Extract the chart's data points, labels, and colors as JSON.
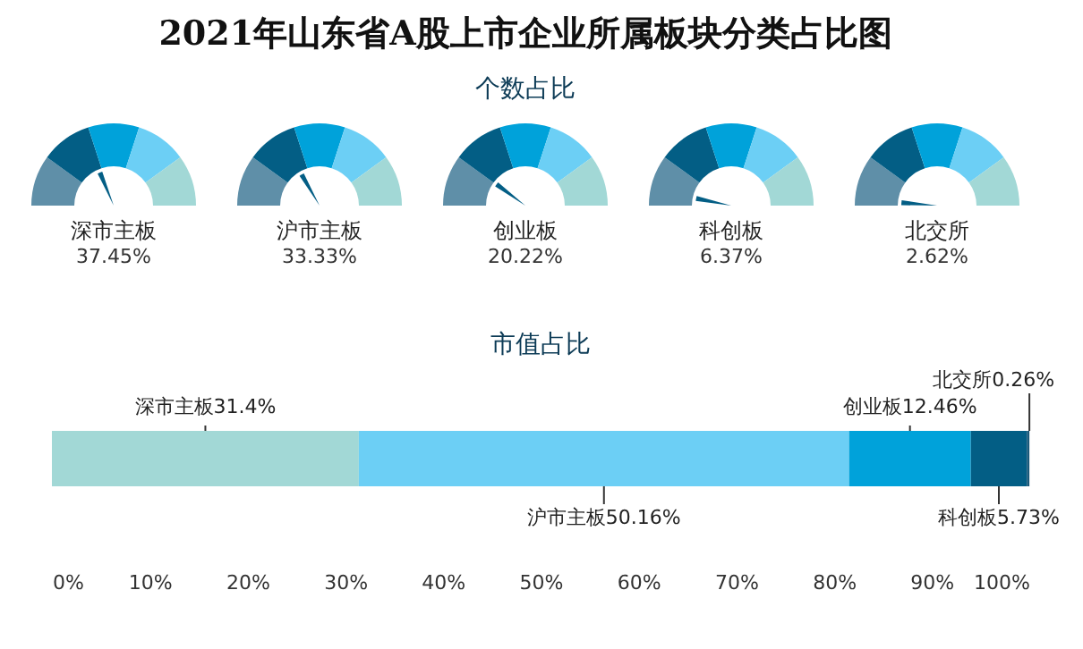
{
  "chart_data": [
    {
      "type": "other",
      "title": "2021年山东省A股上市企业所属板块分类占比图",
      "subtitle": "个数占比",
      "categories": [
        "深市主板",
        "沪市主板",
        "创业板",
        "科创板",
        "北交所"
      ],
      "values": [
        37.45,
        33.33,
        20.22,
        6.37,
        2.62
      ],
      "value_labels": [
        "37.45%",
        "33.33%",
        "20.22%",
        "6.37%",
        "2.62%"
      ]
    },
    {
      "type": "bar",
      "title": "市值占比",
      "orientation": "horizontal",
      "stacked": true,
      "categories": [
        null
      ],
      "xlim": [
        0,
        100
      ],
      "xticks": [
        {
          "value": 0,
          "label": "0%"
        },
        {
          "value": 10,
          "label": "10%"
        },
        {
          "value": 20,
          "label": "20%"
        },
        {
          "value": 30,
          "label": "30%"
        },
        {
          "value": 40,
          "label": "40%"
        },
        {
          "value": 50,
          "label": "50%"
        },
        {
          "value": 60,
          "label": "60%"
        },
        {
          "value": 70,
          "label": "70%"
        },
        {
          "value": 80,
          "label": "80%"
        },
        {
          "value": 90,
          "label": "90%"
        },
        {
          "value": 100,
          "label": "100%"
        }
      ],
      "series": [
        {
          "name": "深市主板",
          "color": "#a2d8d6",
          "values": [
            31.4
          ],
          "value_labels": [
            "31.4%"
          ]
        },
        {
          "name": "沪市主板",
          "color": "#6ccff5",
          "values": [
            50.16
          ],
          "value_labels": [
            "50.16%"
          ]
        },
        {
          "name": "创业板",
          "color": "#00a2da",
          "values": [
            12.46
          ],
          "value_labels": [
            "12.46%"
          ]
        },
        {
          "name": "科创板",
          "color": "#035e85",
          "values": [
            5.73
          ],
          "value_labels": [
            "5.73%"
          ]
        },
        {
          "name": "北交所",
          "color": "#1b5a7a",
          "values": [
            0.26
          ],
          "value_labels": [
            "0.26%"
          ]
        }
      ],
      "legend": false,
      "grid": false
    }
  ]
}
